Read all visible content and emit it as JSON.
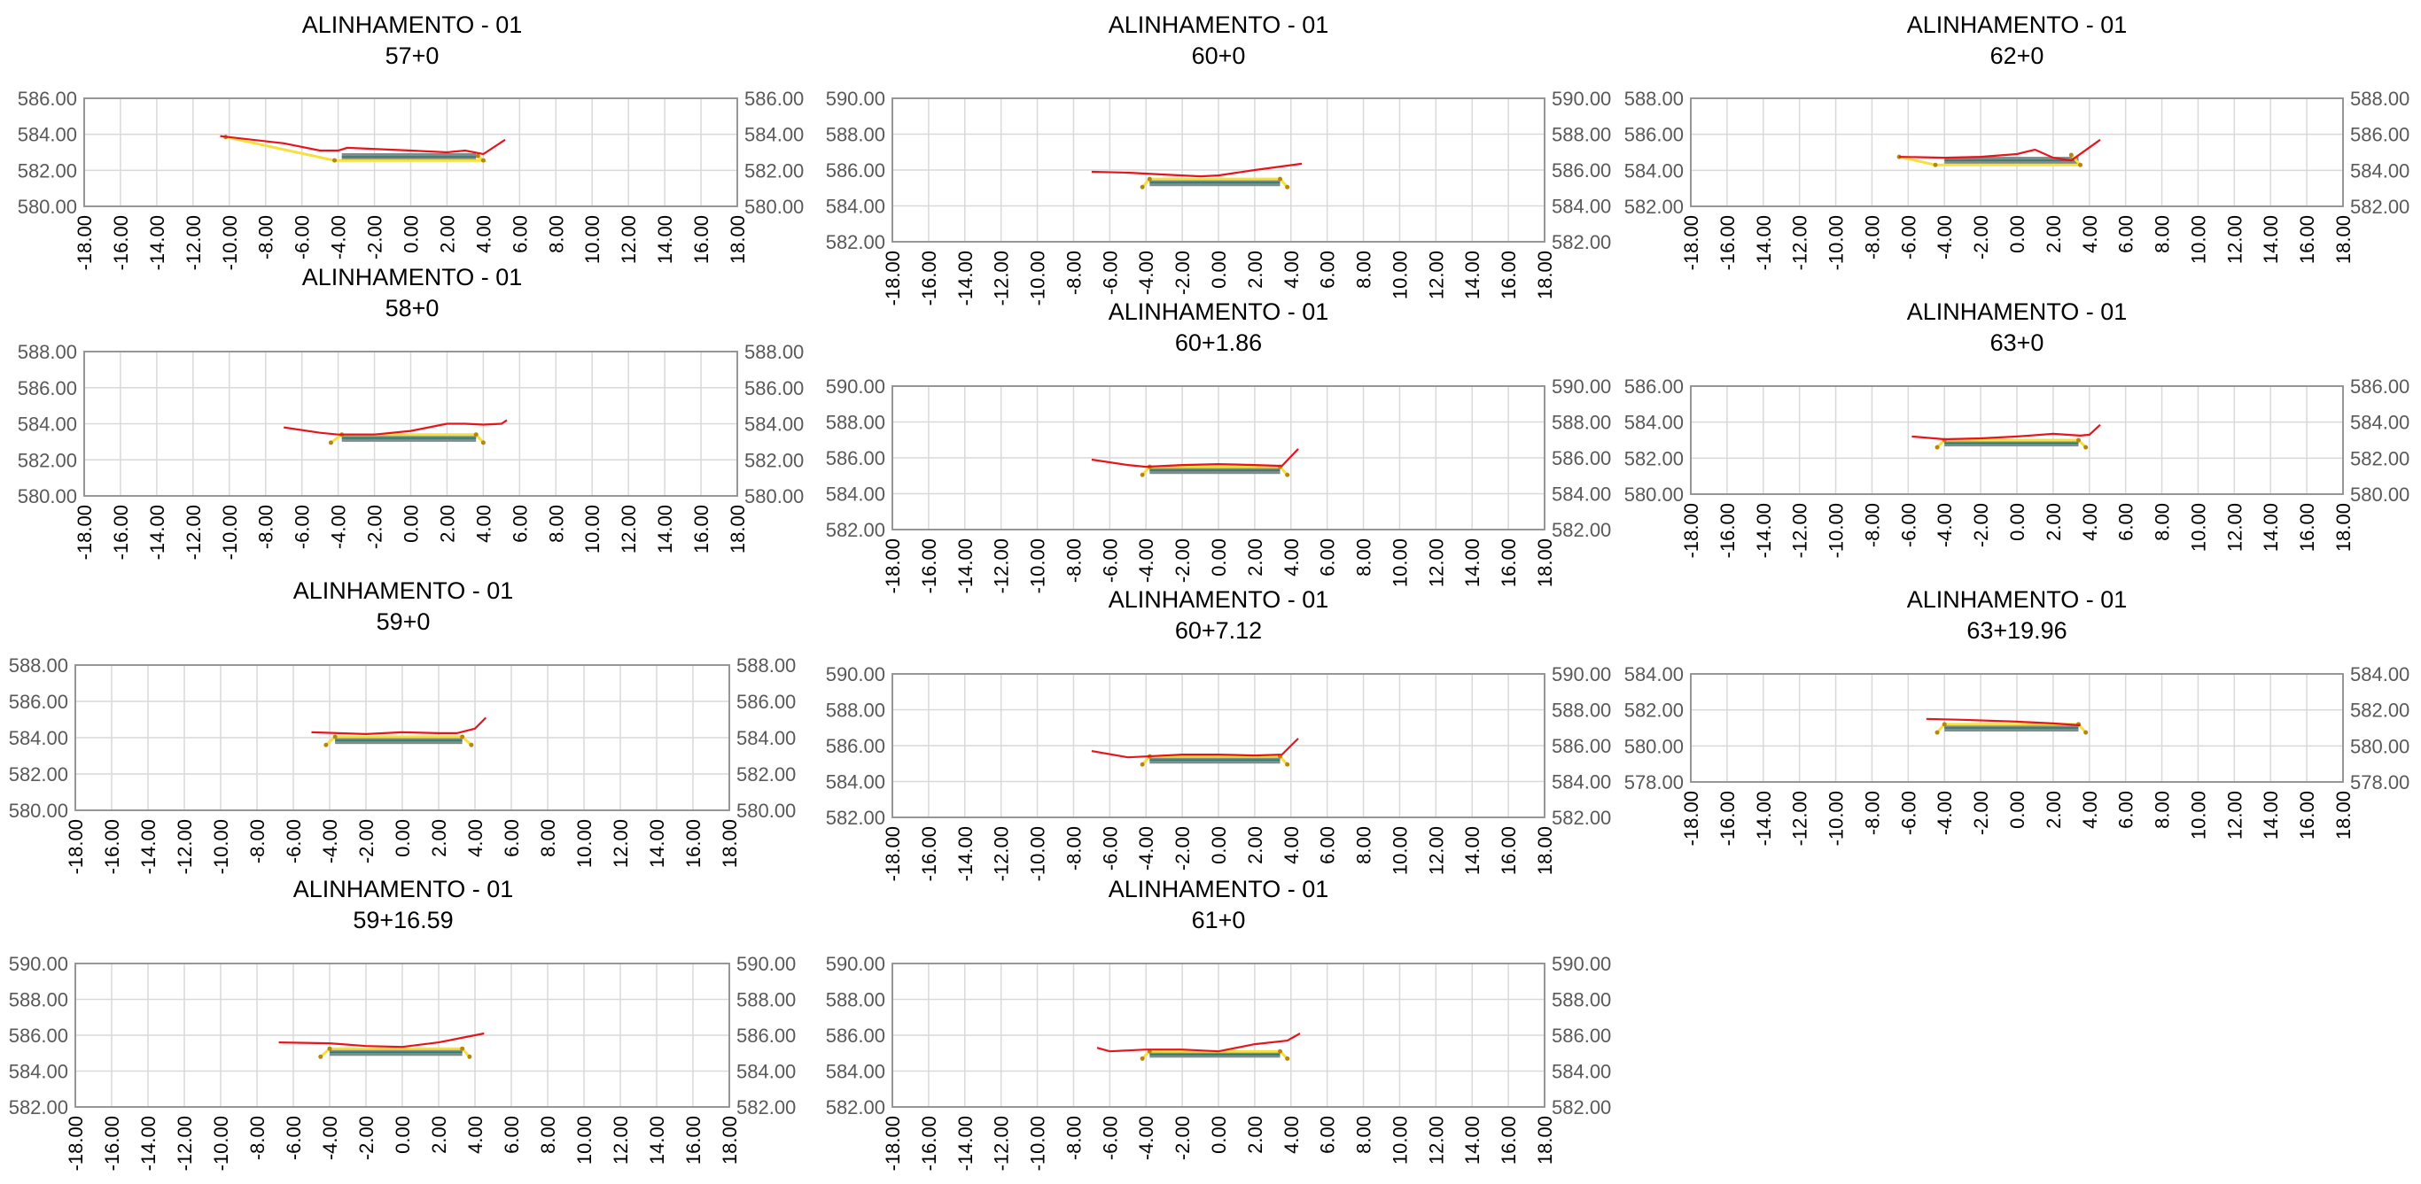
{
  "colors": {
    "terrain": "#e8141c",
    "platform": "#f5e03c",
    "layers": "#7f8c8d",
    "grid": "#d9d9d9",
    "frame": "#8c8c8c"
  },
  "chart_data": [
    {
      "type": "line",
      "title": "ALINHAMENTO - 01",
      "subtitle": "57+0",
      "xlim": [
        -18,
        18
      ],
      "ylim": [
        580,
        586
      ],
      "yticks": [
        "580.00",
        "582.00",
        "584.00",
        "586.00"
      ],
      "xticks": [
        "-18.00",
        "-16.00",
        "-14.00",
        "-12.00",
        "-10.00",
        "-8.00",
        "-6.00",
        "-4.00",
        "-2.00",
        "0.00",
        "2.00",
        "4.00",
        "6.00",
        "8.00",
        "10.00",
        "12.00",
        "14.00",
        "16.00",
        "18.00"
      ],
      "terrain": [
        [
          -10.5,
          583.9
        ],
        [
          -7,
          583.5
        ],
        [
          -5,
          583.1
        ],
        [
          -4,
          583.1
        ],
        [
          -3.5,
          583.25
        ],
        [
          0,
          583.1
        ],
        [
          2,
          583.0
        ],
        [
          3,
          583.1
        ],
        [
          4,
          582.9
        ],
        [
          5.2,
          583.7
        ]
      ],
      "platform": [
        [
          -10.2,
          583.85
        ],
        [
          -4.2,
          582.55
        ],
        [
          4,
          582.55
        ],
        [
          3.7,
          582.8
        ]
      ],
      "layers_top": 582.95,
      "layers_bottom": 582.55,
      "layers_left": -3.8,
      "layers_right": 3.6
    },
    {
      "type": "line",
      "title": "ALINHAMENTO - 01",
      "subtitle": "58+0",
      "xlim": [
        -18,
        18
      ],
      "ylim": [
        580,
        588
      ],
      "yticks": [
        "580.00",
        "582.00",
        "584.00",
        "586.00",
        "588.00"
      ],
      "xticks": [
        "-18.00",
        "-16.00",
        "-14.00",
        "-12.00",
        "-10.00",
        "-8.00",
        "-6.00",
        "-4.00",
        "-2.00",
        "0.00",
        "2.00",
        "4.00",
        "6.00",
        "8.00",
        "10.00",
        "12.00",
        "14.00",
        "16.00",
        "18.00"
      ],
      "terrain": [
        [
          -7,
          583.8
        ],
        [
          -5,
          583.5
        ],
        [
          -4,
          583.4
        ],
        [
          -2,
          583.4
        ],
        [
          0,
          583.6
        ],
        [
          2,
          584.0
        ],
        [
          3,
          584.0
        ],
        [
          4,
          583.95
        ],
        [
          5,
          584.0
        ],
        [
          5.3,
          584.2
        ]
      ],
      "platform": [
        [
          -4.4,
          582.95
        ],
        [
          -3.8,
          583.4
        ],
        [
          3.6,
          583.4
        ],
        [
          4.0,
          582.95
        ]
      ],
      "layers_top": 583.4,
      "layers_bottom": 583.0,
      "layers_left": -3.8,
      "layers_right": 3.6
    },
    {
      "type": "line",
      "title": "ALINHAMENTO - 01",
      "subtitle": "59+0",
      "xlim": [
        -18,
        18
      ],
      "ylim": [
        580,
        588
      ],
      "yticks": [
        "580.00",
        "582.00",
        "584.00",
        "586.00",
        "588.00"
      ],
      "xticks": [
        "-18.00",
        "-16.00",
        "-14.00",
        "-12.00",
        "-10.00",
        "-8.00",
        "-6.00",
        "-4.00",
        "-2.00",
        "0.00",
        "2.00",
        "4.00",
        "6.00",
        "8.00",
        "10.00",
        "12.00",
        "14.00",
        "16.00",
        "18.00"
      ],
      "terrain": [
        [
          -5,
          584.3
        ],
        [
          -2,
          584.2
        ],
        [
          0,
          584.3
        ],
        [
          2,
          584.25
        ],
        [
          3,
          584.25
        ],
        [
          4,
          584.5
        ],
        [
          4.6,
          585.1
        ]
      ],
      "platform": [
        [
          -4.2,
          583.6
        ],
        [
          -3.7,
          584.05
        ],
        [
          3.3,
          584.05
        ],
        [
          3.8,
          583.6
        ]
      ],
      "layers_top": 584.05,
      "layers_bottom": 583.65,
      "layers_left": -3.7,
      "layers_right": 3.3
    },
    {
      "type": "line",
      "title": "ALINHAMENTO - 01",
      "subtitle": "59+16.59",
      "xlim": [
        -18,
        18
      ],
      "ylim": [
        582,
        590
      ],
      "yticks": [
        "582.00",
        "584.00",
        "586.00",
        "588.00",
        "590.00"
      ],
      "xticks": [
        "-18.00",
        "-16.00",
        "-14.00",
        "-12.00",
        "-10.00",
        "-8.00",
        "-6.00",
        "-4.00",
        "-2.00",
        "0.00",
        "2.00",
        "4.00",
        "6.00",
        "8.00",
        "10.00",
        "12.00",
        "14.00",
        "16.00",
        "18.00"
      ],
      "terrain": [
        [
          -6.8,
          585.6
        ],
        [
          -4,
          585.55
        ],
        [
          -2,
          585.4
        ],
        [
          0,
          585.35
        ],
        [
          2,
          585.6
        ],
        [
          4,
          586.0
        ],
        [
          4.5,
          586.1
        ]
      ],
      "platform": [
        [
          -4.5,
          584.8
        ],
        [
          -4.0,
          585.25
        ],
        [
          3.3,
          585.25
        ],
        [
          3.7,
          584.8
        ]
      ],
      "layers_top": 585.25,
      "layers_bottom": 584.85,
      "layers_left": -4.0,
      "layers_right": 3.3
    },
    {
      "type": "line",
      "title": "ALINHAMENTO - 01",
      "subtitle": "60+0",
      "xlim": [
        -18,
        18
      ],
      "ylim": [
        582,
        590
      ],
      "yticks": [
        "582.00",
        "584.00",
        "586.00",
        "588.00",
        "590.00"
      ],
      "xticks": [
        "-18.00",
        "-16.00",
        "-14.00",
        "-12.00",
        "-10.00",
        "-8.00",
        "-6.00",
        "-4.00",
        "-2.00",
        "0.00",
        "2.00",
        "4.00",
        "6.00",
        "8.00",
        "10.00",
        "12.00",
        "14.00",
        "16.00",
        "18.00"
      ],
      "terrain": [
        [
          -7,
          585.9
        ],
        [
          -5,
          585.85
        ],
        [
          -3,
          585.75
        ],
        [
          -1,
          585.65
        ],
        [
          0,
          585.7
        ],
        [
          2,
          586.0
        ],
        [
          4.6,
          586.35
        ]
      ],
      "platform": [
        [
          -4.2,
          585.05
        ],
        [
          -3.8,
          585.5
        ],
        [
          3.4,
          585.5
        ],
        [
          3.8,
          585.05
        ]
      ],
      "layers_top": 585.5,
      "layers_bottom": 585.1,
      "layers_left": -3.8,
      "layers_right": 3.4
    },
    {
      "type": "line",
      "title": "ALINHAMENTO - 01",
      "subtitle": "60+1.86",
      "xlim": [
        -18,
        18
      ],
      "ylim": [
        582,
        590
      ],
      "yticks": [
        "582.00",
        "584.00",
        "586.00",
        "588.00",
        "590.00"
      ],
      "xticks": [
        "-18.00",
        "-16.00",
        "-14.00",
        "-12.00",
        "-10.00",
        "-8.00",
        "-6.00",
        "-4.00",
        "-2.00",
        "0.00",
        "2.00",
        "4.00",
        "6.00",
        "8.00",
        "10.00",
        "12.00",
        "14.00",
        "16.00",
        "18.00"
      ],
      "terrain": [
        [
          -7,
          585.9
        ],
        [
          -5,
          585.6
        ],
        [
          -4,
          585.5
        ],
        [
          -2,
          585.6
        ],
        [
          0,
          585.65
        ],
        [
          2,
          585.6
        ],
        [
          3.5,
          585.55
        ],
        [
          4.4,
          586.5
        ]
      ],
      "platform": [
        [
          -4.2,
          585.05
        ],
        [
          -3.8,
          585.5
        ],
        [
          3.4,
          585.5
        ],
        [
          3.8,
          585.05
        ]
      ],
      "layers_top": 585.5,
      "layers_bottom": 585.1,
      "layers_left": -3.8,
      "layers_right": 3.4
    },
    {
      "type": "line",
      "title": "ALINHAMENTO - 01",
      "subtitle": "60+7.12",
      "xlim": [
        -18,
        18
      ],
      "ylim": [
        582,
        590
      ],
      "yticks": [
        "582.00",
        "584.00",
        "586.00",
        "588.00",
        "590.00"
      ],
      "xticks": [
        "-18.00",
        "-16.00",
        "-14.00",
        "-12.00",
        "-10.00",
        "-8.00",
        "-6.00",
        "-4.00",
        "-2.00",
        "0.00",
        "2.00",
        "4.00",
        "6.00",
        "8.00",
        "10.00",
        "12.00",
        "14.00",
        "16.00",
        "18.00"
      ],
      "terrain": [
        [
          -7,
          585.7
        ],
        [
          -5,
          585.35
        ],
        [
          -4,
          585.4
        ],
        [
          -2,
          585.5
        ],
        [
          0,
          585.5
        ],
        [
          2,
          585.45
        ],
        [
          3.5,
          585.5
        ],
        [
          4.4,
          586.4
        ]
      ],
      "platform": [
        [
          -4.2,
          584.95
        ],
        [
          -3.8,
          585.4
        ],
        [
          3.4,
          585.4
        ],
        [
          3.8,
          584.95
        ]
      ],
      "layers_top": 585.4,
      "layers_bottom": 585.0,
      "layers_left": -3.8,
      "layers_right": 3.4
    },
    {
      "type": "line",
      "title": "ALINHAMENTO - 01",
      "subtitle": "61+0",
      "xlim": [
        -18,
        18
      ],
      "ylim": [
        582,
        590
      ],
      "yticks": [
        "582.00",
        "584.00",
        "586.00",
        "588.00",
        "590.00"
      ],
      "xticks": [
        "-18.00",
        "-16.00",
        "-14.00",
        "-12.00",
        "-10.00",
        "-8.00",
        "-6.00",
        "-4.00",
        "-2.00",
        "0.00",
        "2.00",
        "4.00",
        "6.00",
        "8.00",
        "10.00",
        "12.00",
        "14.00",
        "16.00",
        "18.00"
      ],
      "terrain": [
        [
          -6.7,
          585.3
        ],
        [
          -6,
          585.1
        ],
        [
          -4,
          585.2
        ],
        [
          -2,
          585.2
        ],
        [
          0,
          585.1
        ],
        [
          2,
          585.5
        ],
        [
          3.8,
          585.7
        ],
        [
          4.5,
          586.1
        ]
      ],
      "platform": [
        [
          -4.2,
          584.7
        ],
        [
          -3.8,
          585.1
        ],
        [
          3.4,
          585.1
        ],
        [
          3.8,
          584.7
        ]
      ],
      "layers_top": 585.1,
      "layers_bottom": 584.75,
      "layers_left": -3.8,
      "layers_right": 3.4
    },
    {
      "type": "line",
      "title": "ALINHAMENTO - 01",
      "subtitle": "62+0",
      "xlim": [
        -18,
        18
      ],
      "ylim": [
        582,
        588
      ],
      "yticks": [
        "582.00",
        "584.00",
        "586.00",
        "588.00"
      ],
      "xticks": [
        "-18.00",
        "-16.00",
        "-14.00",
        "-12.00",
        "-10.00",
        "-8.00",
        "-6.00",
        "-4.00",
        "-2.00",
        "0.00",
        "2.00",
        "4.00",
        "6.00",
        "8.00",
        "10.00",
        "12.00",
        "14.00",
        "16.00",
        "18.00"
      ],
      "terrain": [
        [
          -6.5,
          584.75
        ],
        [
          -4,
          584.7
        ],
        [
          -2,
          584.75
        ],
        [
          0,
          584.9
        ],
        [
          1,
          585.15
        ],
        [
          2,
          584.7
        ],
        [
          3,
          584.55
        ],
        [
          4.6,
          585.7
        ]
      ],
      "platform": [
        [
          -6.5,
          584.75
        ],
        [
          -4.5,
          584.3
        ],
        [
          3.5,
          584.3
        ],
        [
          3.0,
          584.85
        ]
      ],
      "layers_top": 584.75,
      "layers_bottom": 584.35,
      "layers_left": -4.0,
      "layers_right": 3.4
    },
    {
      "type": "line",
      "title": "ALINHAMENTO - 01",
      "subtitle": "63+0",
      "xlim": [
        -18,
        18
      ],
      "ylim": [
        580,
        586
      ],
      "yticks": [
        "580.00",
        "582.00",
        "584.00",
        "586.00"
      ],
      "xticks": [
        "-18.00",
        "-16.00",
        "-14.00",
        "-12.00",
        "-10.00",
        "-8.00",
        "-6.00",
        "-4.00",
        "-2.00",
        "0.00",
        "2.00",
        "4.00",
        "6.00",
        "8.00",
        "10.00",
        "12.00",
        "14.00",
        "16.00",
        "18.00"
      ],
      "terrain": [
        [
          -5.8,
          583.2
        ],
        [
          -4,
          583.05
        ],
        [
          -2,
          583.1
        ],
        [
          0,
          583.2
        ],
        [
          2,
          583.35
        ],
        [
          3.5,
          583.25
        ],
        [
          4,
          583.3
        ],
        [
          4.6,
          583.85
        ]
      ],
      "platform": [
        [
          -4.4,
          582.6
        ],
        [
          -4.0,
          583.0
        ],
        [
          3.4,
          583.0
        ],
        [
          3.8,
          582.6
        ]
      ],
      "layers_top": 583.0,
      "layers_bottom": 582.65,
      "layers_left": -4.0,
      "layers_right": 3.4
    },
    {
      "type": "line",
      "title": "ALINHAMENTO - 01",
      "subtitle": "63+19.96",
      "xlim": [
        -18,
        18
      ],
      "ylim": [
        578,
        584
      ],
      "yticks": [
        "578.00",
        "580.00",
        "582.00",
        "584.00"
      ],
      "xticks": [
        "-18.00",
        "-16.00",
        "-14.00",
        "-12.00",
        "-10.00",
        "-8.00",
        "-6.00",
        "-4.00",
        "-2.00",
        "0.00",
        "2.00",
        "4.00",
        "6.00",
        "8.00",
        "10.00",
        "12.00",
        "14.00",
        "16.00",
        "18.00"
      ],
      "terrain": [
        [
          -5,
          581.5
        ],
        [
          -3,
          581.45
        ],
        [
          0,
          581.35
        ],
        [
          2,
          581.25
        ],
        [
          3.5,
          581.15
        ]
      ],
      "platform": [
        [
          -4.4,
          580.75
        ],
        [
          -4.0,
          581.2
        ],
        [
          3.4,
          581.2
        ],
        [
          3.8,
          580.75
        ]
      ],
      "layers_top": 581.2,
      "layers_bottom": 580.8,
      "layers_left": -4.0,
      "layers_right": 3.4
    }
  ]
}
